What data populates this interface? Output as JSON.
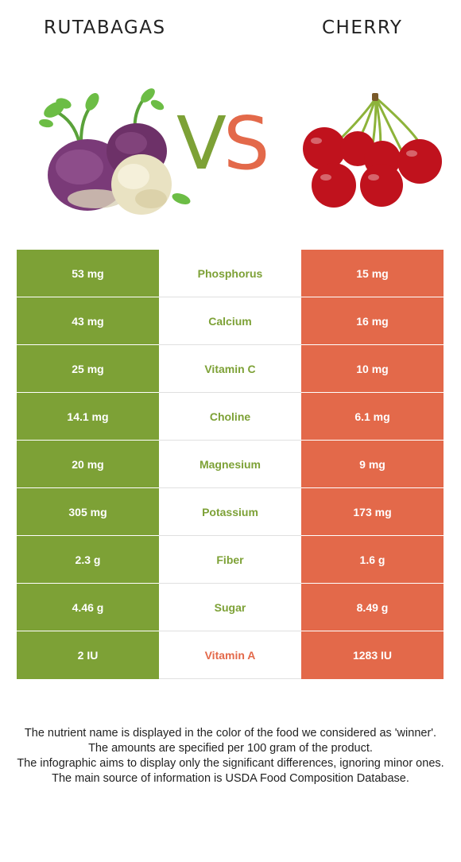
{
  "header": {
    "left_food": "RUTABAGAS",
    "right_food": "CHERRY",
    "vs_v": "V",
    "vs_s": "S"
  },
  "colors": {
    "left": "#7da136",
    "right": "#e3694a",
    "text": "#222222"
  },
  "rows": [
    {
      "left": "53 mg",
      "name": "Phosphorus",
      "right": "15 mg",
      "winner": "left"
    },
    {
      "left": "43 mg",
      "name": "Calcium",
      "right": "16 mg",
      "winner": "left"
    },
    {
      "left": "25 mg",
      "name": "Vitamin C",
      "right": "10 mg",
      "winner": "left"
    },
    {
      "left": "14.1 mg",
      "name": "Choline",
      "right": "6.1 mg",
      "winner": "left"
    },
    {
      "left": "20 mg",
      "name": "Magnesium",
      "right": "9 mg",
      "winner": "left"
    },
    {
      "left": "305 mg",
      "name": "Potassium",
      "right": "173 mg",
      "winner": "left"
    },
    {
      "left": "2.3 g",
      "name": "Fiber",
      "right": "1.6 g",
      "winner": "left"
    },
    {
      "left": "4.46 g",
      "name": "Sugar",
      "right": "8.49 g",
      "winner": "left"
    },
    {
      "left": "2 IU",
      "name": "Vitamin A",
      "right": "1283 IU",
      "winner": "right"
    }
  ],
  "footnote": {
    "line1": "The nutrient name is displayed in the color of the food we considered as 'winner'.",
    "line2": "The amounts are specified per 100 gram of the product.",
    "line3": "The infographic aims to display only the significant differences, ignoring minor ones.",
    "line4": "The main source of information is USDA Food Composition Database."
  }
}
